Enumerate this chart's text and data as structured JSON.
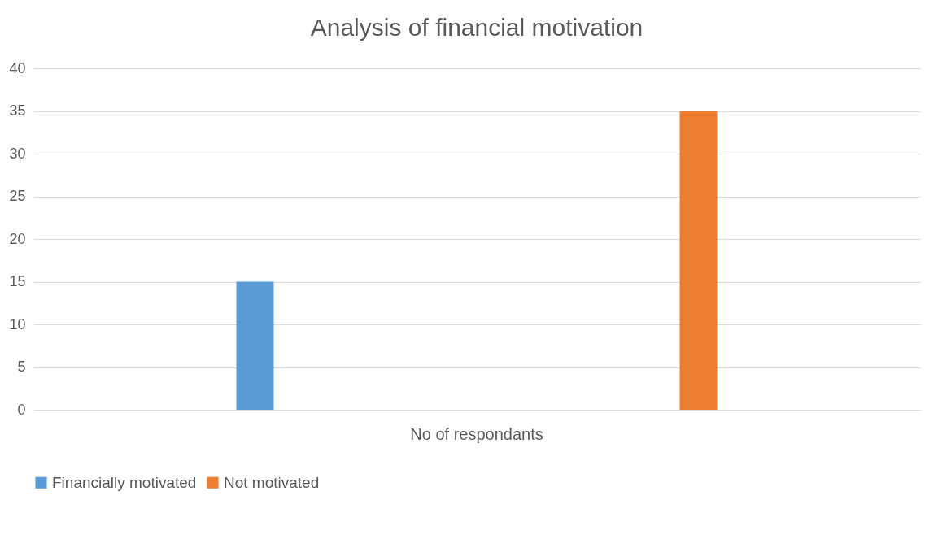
{
  "chart_data": {
    "type": "bar",
    "title": "Analysis of financial motivation",
    "categories": [
      "No of respondants"
    ],
    "series": [
      {
        "name": "Financially motivated",
        "color": "#5b9bd5",
        "values": [
          15
        ]
      },
      {
        "name": "Not motivated",
        "color": "#ed7d31",
        "values": [
          35
        ]
      }
    ],
    "ylim": [
      0,
      40
    ],
    "yticks": [
      0,
      5,
      10,
      15,
      20,
      25,
      30,
      35,
      40
    ],
    "grid": "y",
    "legend": "bottom"
  }
}
